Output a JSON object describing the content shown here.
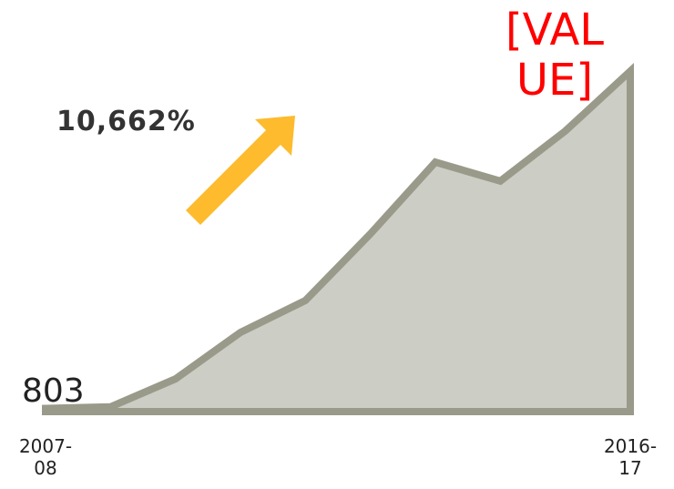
{
  "chart_data": {
    "type": "area",
    "categories": [
      "2007-08",
      null,
      null,
      null,
      null,
      null,
      null,
      null,
      null,
      "2016-17"
    ],
    "values": [
      803,
      1200,
      8300,
      20100,
      28200,
      45100,
      63300,
      58500,
      71200,
      86400
    ],
    "value_labels": [
      null,
      null,
      null,
      null,
      null,
      null,
      null,
      null,
      null,
      "[VALUE]"
    ],
    "annotation": "10,662%",
    "ylim": [
      0,
      90000
    ],
    "color": "#cccdc4",
    "line_color": "#9a9a8a",
    "label_color": "#ff0000",
    "arrow_color": "#fdbb2d"
  }
}
